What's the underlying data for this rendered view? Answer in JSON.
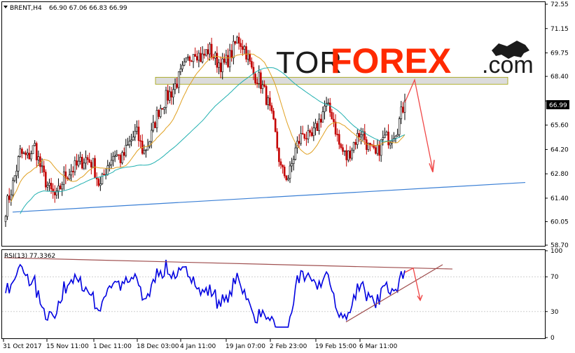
{
  "header": {
    "symbol_label": "BRENT,H4",
    "ohlc": "66.90 67.06 66.83 66.99",
    "rsi_label": "RSI(13) 77.3362"
  },
  "logo": {
    "part1": "TOR",
    "part2": "FOREX",
    "part3": ".com"
  },
  "price_axis": {
    "ticks": [
      "72.55",
      "71.15",
      "69.75",
      "68.40",
      "66.99",
      "65.60",
      "64.20",
      "62.80",
      "61.40",
      "60.05",
      "58.70"
    ],
    "current_price": "66.99",
    "ylim": [
      58.7,
      72.55
    ]
  },
  "rsi_axis": {
    "ticks": [
      "100",
      "70",
      "30",
      "0"
    ],
    "ylim": [
      0,
      100
    ]
  },
  "time_axis": {
    "labels": [
      "31 Oct 2017",
      "15 Nov 11:00",
      "1 Dec 11:00",
      "18 Dec 03:00",
      "4 Jan 11:00",
      "19 Jan 07:00",
      "2 Feb 23:00",
      "19 Feb 15:00",
      "6 Mar 11:00"
    ]
  },
  "colors": {
    "bull_candle": "#000000",
    "bear_candle": "#c40000",
    "ma_fast": "#e0a020",
    "ma_slow": "#20b0b0",
    "trendline": "#3a7fd5",
    "rsi_line": "#0000e0",
    "rsi_trend": "#a05050",
    "arrow": "#f04848",
    "zone": "#d0d0d0"
  },
  "chart_data": {
    "type": "candlestick",
    "title": "BRENT,H4",
    "ylim": [
      58.7,
      72.55
    ],
    "close_path": [
      [
        "31 Oct 2017",
        60.8
      ],
      [
        "",
        62.2
      ],
      [
        "",
        64.0
      ],
      [
        "",
        63.7
      ],
      [
        "",
        64.4
      ],
      [
        "",
        62.9
      ],
      [
        "15 Nov 11:00",
        61.9
      ],
      [
        "",
        61.4
      ],
      [
        "",
        62.6
      ],
      [
        "",
        63.0
      ],
      [
        "",
        63.3
      ],
      [
        "",
        63.7
      ],
      [
        "1 Dec 11:00",
        63.4
      ],
      [
        "",
        62.0
      ],
      [
        "",
        63.3
      ],
      [
        "",
        64.0
      ],
      [
        "",
        63.6
      ],
      [
        "",
        64.5
      ],
      [
        "",
        65.2
      ],
      [
        "18 Dec 03:00",
        64.0
      ],
      [
        "",
        64.9
      ],
      [
        "",
        66.4
      ],
      [
        "",
        67.1
      ],
      [
        "",
        67.6
      ],
      [
        "4 Jan 11:00",
        68.4
      ],
      [
        "",
        69.2
      ],
      [
        "",
        70.0
      ],
      [
        "",
        69.4
      ],
      [
        "",
        70.0
      ],
      [
        "",
        69.3
      ],
      [
        "19 Jan 07:00",
        69.0
      ],
      [
        "",
        69.6
      ],
      [
        "",
        70.6
      ],
      [
        "",
        70.0
      ],
      [
        "",
        68.6
      ],
      [
        "",
        68.2
      ],
      [
        "",
        67.1
      ],
      [
        "2 Feb 23:00",
        65.4
      ],
      [
        "",
        62.9
      ],
      [
        "",
        62.6
      ],
      [
        "",
        64.3
      ],
      [
        "",
        65.2
      ],
      [
        "",
        64.7
      ],
      [
        "19 Feb 15:00",
        65.6
      ],
      [
        "",
        66.7
      ],
      [
        "",
        66.2
      ],
      [
        "",
        64.4
      ],
      [
        "",
        63.7
      ],
      [
        "",
        64.6
      ],
      [
        "",
        65.3
      ],
      [
        "6 Mar 11:00",
        64.3
      ],
      [
        "",
        63.8
      ],
      [
        "",
        64.8
      ],
      [
        "",
        64.9
      ],
      [
        "",
        65.5
      ],
      [
        "",
        66.99
      ]
    ],
    "series": [
      {
        "name": "",
        "kind": "ma_fast"
      },
      {
        "name": "",
        "kind": "ma_slow"
      }
    ],
    "resistance_zone": [
      67.95,
      68.35
    ],
    "rsi": {
      "ylim": [
        0,
        100
      ],
      "levels": [
        70,
        30
      ],
      "last": 77.3362
    }
  }
}
